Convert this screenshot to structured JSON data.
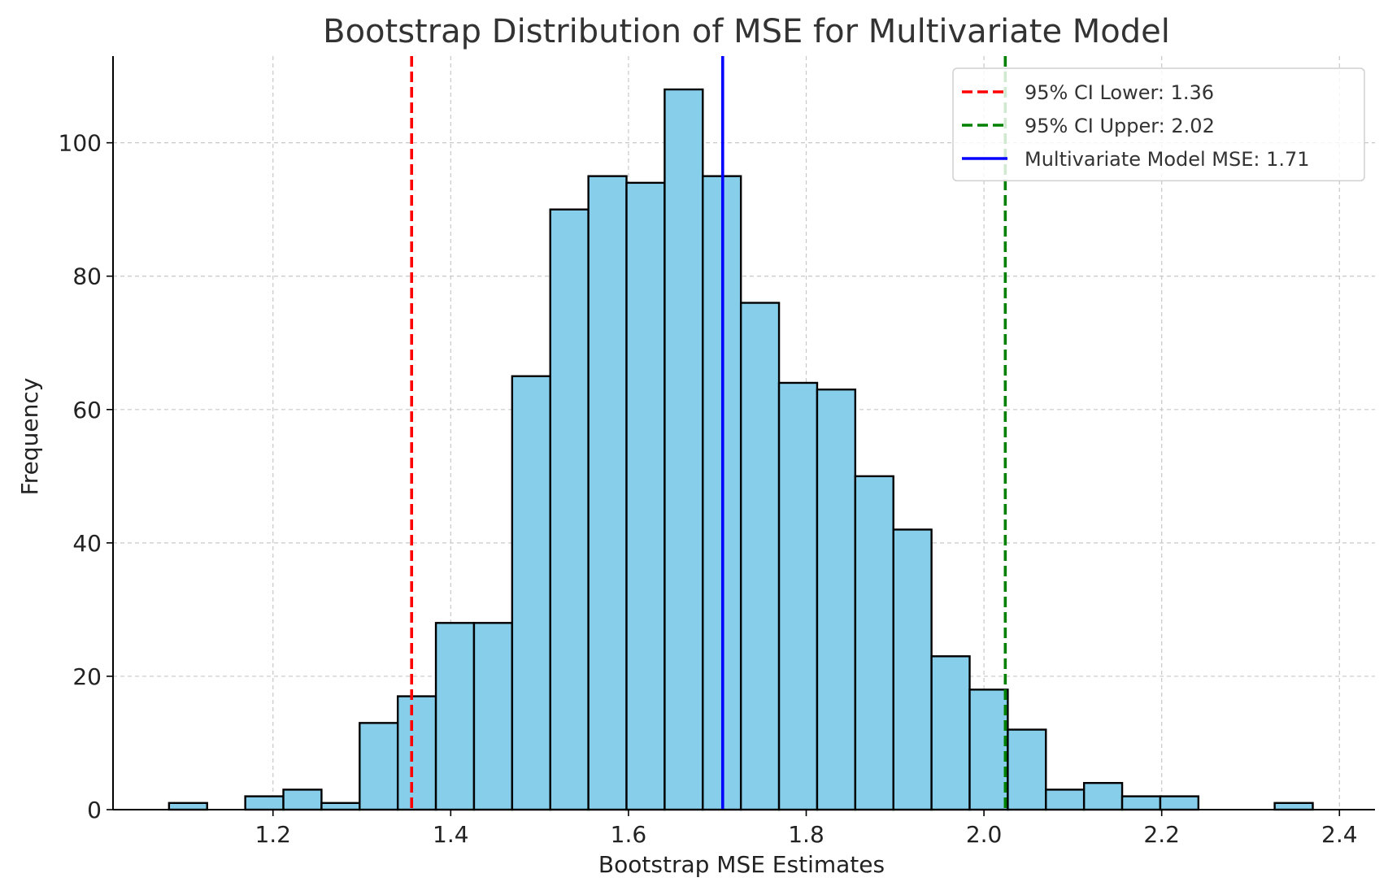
{
  "chart_data": {
    "type": "histogram",
    "title": "Bootstrap Distribution of MSE for Multivariate Model",
    "xlabel": "Bootstrap MSE Estimates",
    "ylabel": "Frequency",
    "xlim": [
      1.02,
      2.44
    ],
    "ylim": [
      0,
      113
    ],
    "x_ticks": [
      "1.2",
      "1.4",
      "1.6",
      "1.8",
      "2.0",
      "2.2",
      "2.4"
    ],
    "y_ticks": [
      "0",
      "20",
      "40",
      "60",
      "80",
      "100"
    ],
    "grid": true,
    "bin_start": 1.083,
    "bin_width": 0.0429,
    "counts": [
      1,
      0,
      2,
      3,
      1,
      13,
      17,
      28,
      28,
      65,
      90,
      95,
      94,
      108,
      95,
      76,
      64,
      63,
      50,
      42,
      23,
      18,
      12,
      3,
      4,
      2,
      2,
      0,
      0,
      1
    ],
    "bar_color": "#87ceeb",
    "bar_edge_color": "#000000",
    "reference_lines": [
      {
        "label": "95% CI Lower: 1.36",
        "x": 1.356,
        "color": "#ff0000",
        "style": "dashed"
      },
      {
        "label": "95% CI Upper: 2.02",
        "x": 2.024,
        "color": "#008000",
        "style": "dashed"
      },
      {
        "label": "Multivariate Model MSE: 1.71",
        "x": 1.706,
        "color": "#0000ff",
        "style": "solid"
      }
    ],
    "legend_position": "top-right"
  }
}
